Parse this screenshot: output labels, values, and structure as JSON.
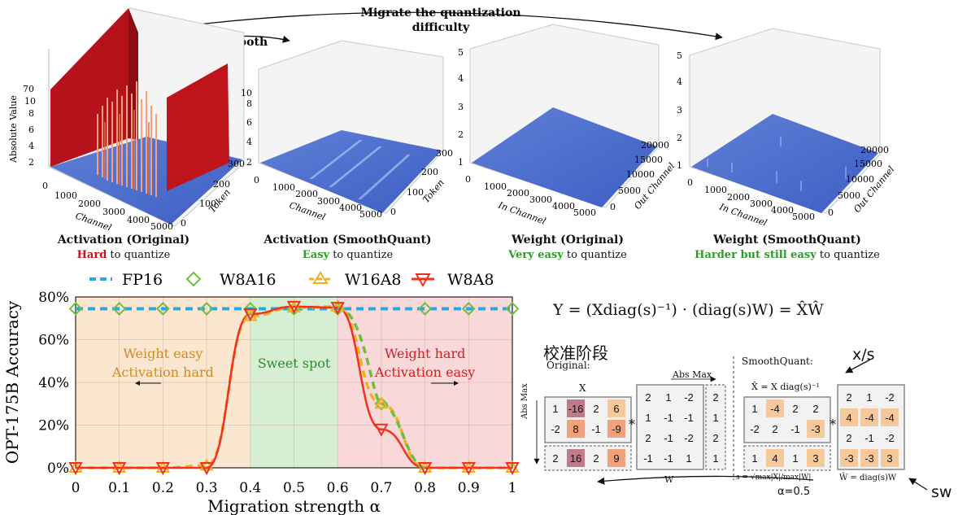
{
  "panels": [
    {
      "title": "Activation (Original)",
      "sub_em": "Hard",
      "sub_em_color": "red",
      "sub_rest": " to quantize",
      "axis_x": "Channel",
      "axis_y": "Token",
      "zlabel": "Absolute Value",
      "zticks": [
        "2",
        "4",
        "6",
        "8",
        "10",
        "70"
      ],
      "xticks": [
        "0",
        "1000",
        "2000",
        "3000",
        "4000",
        "5000"
      ],
      "yticks": [
        "0",
        "100",
        "200",
        "300"
      ]
    },
    {
      "title": "Activation (SmoothQuant)",
      "sub_em": "Easy",
      "sub_em_color": "green",
      "sub_rest": " to quantize",
      "axis_x": "Channel",
      "axis_y": "Token",
      "zticks": [
        "2",
        "4",
        "6",
        "8",
        "10"
      ],
      "xticks": [
        "0",
        "1000",
        "2000",
        "3000",
        "4000",
        "5000"
      ],
      "yticks": [
        "0",
        "100",
        "200",
        "300"
      ]
    },
    {
      "title": "Weight (Original)",
      "sub_em": "Very easy",
      "sub_em_color": "green",
      "sub_rest": " to quantize",
      "axis_x": "In Channel",
      "axis_y": "Out Channel",
      "zticks": [
        "1",
        "2",
        "3",
        "4",
        "5"
      ],
      "xticks": [
        "0",
        "1000",
        "2000",
        "3000",
        "4000",
        "5000"
      ],
      "yticks": [
        "0",
        "5000",
        "10000",
        "15000",
        "20000"
      ]
    },
    {
      "title": "Weight (SmoothQuant)",
      "sub_em": "Harder but still easy",
      "sub_em_color": "green",
      "sub_rest": " to quantize",
      "axis_x": "In Channel",
      "axis_y": "Out Channel",
      "zticks": [
        "1",
        "2",
        "3",
        "4",
        "5"
      ],
      "xticks": [
        "0",
        "1000",
        "2000",
        "3000",
        "4000",
        "5000"
      ],
      "yticks": [
        "0",
        "5000",
        "10000",
        "15000",
        "20000"
      ]
    }
  ],
  "arrows": {
    "smooth_label": "Smooth",
    "migrate_label_1": "Migrate the quantization",
    "migrate_label_2": "difficulty"
  },
  "chart_data": {
    "type": "line",
    "xlabel": "Migration strength α",
    "ylabel": "OPT-175B Accuracy",
    "xlim": [
      0,
      1
    ],
    "ylim": [
      0,
      80
    ],
    "xticks": [
      "0",
      "0.1",
      "0.2",
      "0.3",
      "0.4",
      "0.5",
      "0.6",
      "0.7",
      "0.8",
      "0.9",
      "1"
    ],
    "yticks": [
      "0%",
      "20%",
      "40%",
      "60%",
      "80%"
    ],
    "x": [
      0,
      0.1,
      0.2,
      0.3,
      0.4,
      0.5,
      0.6,
      0.7,
      0.8,
      0.9,
      1.0
    ],
    "series": [
      {
        "name": "FP16",
        "color": "#29a8e0",
        "values": [
          74.5,
          74.5,
          74.5,
          74.5,
          74.5,
          74.5,
          74.5,
          74.5,
          74.5,
          74.5,
          74.5
        ]
      },
      {
        "name": "W8A16",
        "color": "#6cc040",
        "values": [
          74.5,
          74.5,
          74.5,
          74.5,
          74.5,
          74.5,
          74.5,
          74.5,
          74.5,
          74.5,
          74.5
        ]
      },
      {
        "name": "W16A8",
        "color": "#f0b020",
        "values": [
          0,
          0,
          0,
          1,
          71,
          75,
          75.5,
          30,
          0,
          0,
          0
        ]
      },
      {
        "name": "W8A8",
        "color": "#f03020",
        "values": [
          0,
          0,
          0,
          0,
          72,
          75.5,
          75,
          18,
          0,
          0,
          0
        ]
      }
    ],
    "regions": [
      {
        "label_1": "Weight easy",
        "label_2": "Activation hard",
        "from": 0,
        "to": 0.4,
        "color": "#fbe6d0",
        "text_color": "#d08a20"
      },
      {
        "label_1": "Sweet spot",
        "label_2": "",
        "from": 0.4,
        "to": 0.6,
        "color": "#d6efd2",
        "text_color": "#2e8a30"
      },
      {
        "label_1": "Weight hard",
        "label_2": "Activation easy",
        "from": 0.6,
        "to": 1.0,
        "color": "#f8d8d8",
        "text_color": "#d02020"
      }
    ]
  },
  "right": {
    "formula": "Y = (Xdiag(s)⁻¹) · (diag(s)W) = X̂Ŵ",
    "calib_label": "校准阶段",
    "original_label": "Original:",
    "smoothquant_label": "SmoothQuant:",
    "xs_label": "x/s",
    "sw_label": "sw",
    "alpha_label": "α=0.5",
    "x_label": "X",
    "abs_max_top": "Abs Max",
    "abs_max_side": "Abs Max",
    "w_label": "W",
    "xhat_label": "X̂ = X diag(s)⁻¹",
    "s_formula": "s = √max|X|/max|W|",
    "what_label": "Ŵ = diag(s)W",
    "X": [
      [
        "1",
        "-16",
        "2",
        "6"
      ],
      [
        "-2",
        "8",
        "-1",
        "-9"
      ]
    ],
    "X_absmax": [
      "2",
      "16",
      "2",
      "9"
    ],
    "W": [
      [
        "2",
        "1",
        "-2"
      ],
      [
        "1",
        "-1",
        "-1"
      ],
      [
        "2",
        "-1",
        "-2"
      ],
      [
        "-1",
        "-1",
        "1"
      ]
    ],
    "W_absmax": [
      "2",
      "1",
      "2",
      "1"
    ],
    "Xhat": [
      [
        "1",
        "-4",
        "2",
        "2"
      ],
      [
        "-2",
        "2",
        "-1",
        "-3"
      ]
    ],
    "S": [
      "1",
      "4",
      "1",
      "3"
    ],
    "What": [
      [
        "2",
        "1",
        "-2"
      ],
      [
        "4",
        "-4",
        "-4"
      ],
      [
        "2",
        "-1",
        "-2"
      ],
      [
        "-3",
        "-3",
        "3"
      ]
    ],
    "star": "*"
  }
}
